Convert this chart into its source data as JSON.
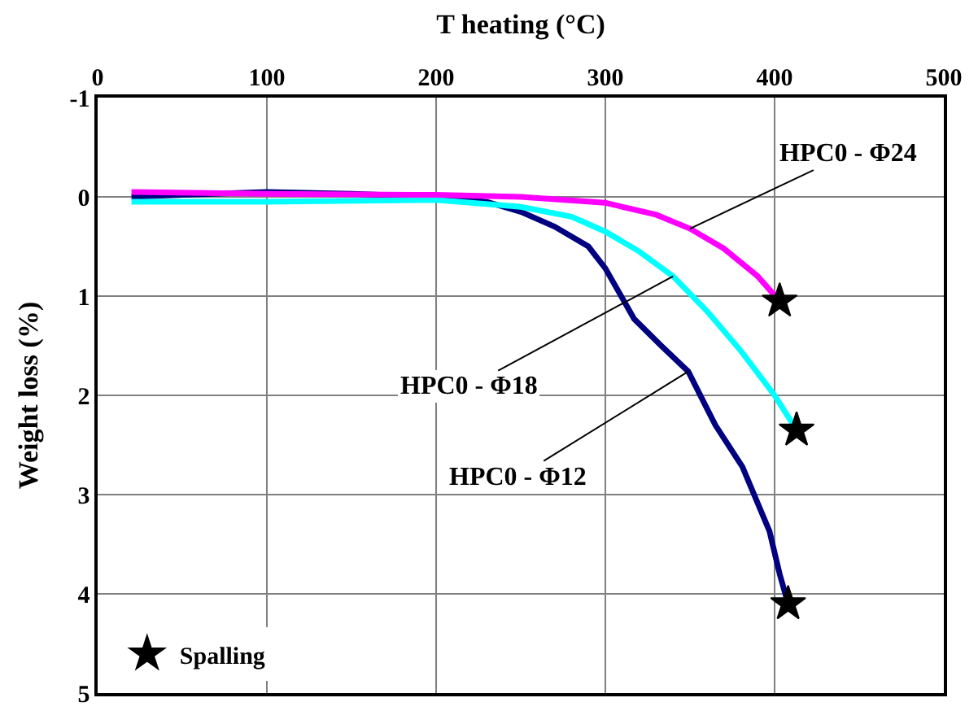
{
  "chart_data": {
    "type": "line",
    "xlabel": "T heating (°C)",
    "ylabel": "Weight loss (%)",
    "xlim": [
      0,
      500
    ],
    "xticks": [
      0,
      100,
      200,
      300,
      400,
      500
    ],
    "ylim": [
      5,
      -1
    ],
    "yticks": [
      -1,
      0,
      1,
      2,
      3,
      4,
      5
    ],
    "grid": true,
    "legend": "bottom left",
    "line_style": "solid",
    "series": [
      {
        "color": "#000080",
        "x": [
          20,
          50,
          100,
          150,
          200,
          230,
          250,
          270,
          290,
          300,
          317,
          333,
          349,
          365,
          381,
          397,
          403,
          408
        ],
        "values": [
          0,
          -0.02,
          -0.05,
          -0.03,
          0,
          0.05,
          0.15,
          0.3,
          0.5,
          0.72,
          1.23,
          1.5,
          1.76,
          2.3,
          2.72,
          3.37,
          3.8,
          4.1
        ]
      },
      {
        "color": "#00ffff",
        "x": [
          20,
          100,
          200,
          250,
          280,
          300,
          320,
          340,
          360,
          380,
          400,
          413
        ],
        "values": [
          0.05,
          0.05,
          0.03,
          0.1,
          0.2,
          0.35,
          0.55,
          0.8,
          1.15,
          1.55,
          2.0,
          2.35
        ]
      },
      {
        "color": "#ff00ff",
        "x": [
          20,
          100,
          200,
          250,
          300,
          330,
          350,
          370,
          390,
          403
        ],
        "values": [
          -0.05,
          -0.03,
          -0.02,
          0,
          0.06,
          0.18,
          0.32,
          0.52,
          0.8,
          1.05
        ]
      },
      {
        "type": "scatter",
        "name": "Spalling",
        "marker": "star",
        "color": "#000000",
        "x": [
          408,
          413,
          403
        ],
        "values": [
          4.1,
          2.35,
          1.05
        ]
      }
    ],
    "annotations": [
      {
        "text": "HPC0 - Φ24",
        "x": 350,
        "y": 0.32
      },
      {
        "text": "HPC0 - Φ18",
        "x": 340,
        "y": 0.8
      },
      {
        "text": "HPC0 - Φ12",
        "x": 349,
        "y": 1.76
      }
    ]
  }
}
